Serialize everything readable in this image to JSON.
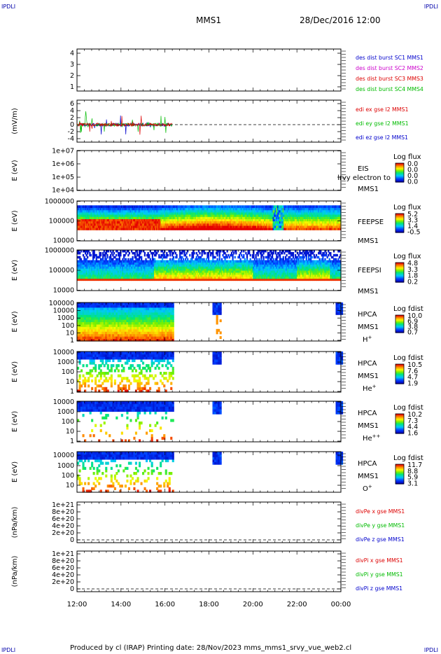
{
  "corners": {
    "tl": "IPDLI",
    "tr": "IPDLI",
    "bl": "IPDLI",
    "br": "IPDLI"
  },
  "header": {
    "mission": "MMS1",
    "datetime": "28/Dec/2016 12:00"
  },
  "footer": "Produced by cl (IRAP)   Printing date: 28/Nov/2023   mms_mms1_srvy_vue_web2.cl",
  "time_axis": {
    "labels": [
      "12:00",
      "14:00",
      "16:00",
      "18:00",
      "20:00",
      "22:00",
      "00:00"
    ]
  },
  "colors": {
    "red": "#dd0000",
    "green": "#00bb00",
    "blue": "#0000cc",
    "magenta": "#cc00cc"
  },
  "chart_data": [
    {
      "type": "line",
      "title": "",
      "ylabel": "",
      "yticks": [
        "1",
        "2",
        "3",
        "4"
      ],
      "ylim": [
        0.5,
        4.5
      ],
      "series": [
        {
          "name": "des dist burst SC1 MMS1",
          "color": "#0000cc",
          "values": []
        },
        {
          "name": "des dist burst SC2 MMS2",
          "color": "#cc00cc",
          "values": []
        },
        {
          "name": "des dist burst SC3 MMS3",
          "color": "#dd0000",
          "values": []
        },
        {
          "name": "des dist burst SC4 MMS4",
          "color": "#00bb00",
          "values": []
        }
      ]
    },
    {
      "type": "line",
      "ylabel": "(mV/m)",
      "yticks": [
        "6",
        "4",
        "2",
        "0",
        "-2",
        "-4"
      ],
      "ylim": [
        -5,
        7
      ],
      "series": [
        {
          "name": "edi ex gse l2 MMS1",
          "color": "#dd0000"
        },
        {
          "name": "edi ey gse l2 MMS1",
          "color": "#00bb00"
        },
        {
          "name": "edi ez gse l2 MMS1",
          "color": "#0000cc"
        }
      ],
      "data_extent": [
        "12:00",
        "16:20"
      ]
    },
    {
      "type": "heatmap",
      "ylabel": "E (eV)",
      "yticks": [
        "1e+07",
        "1e+06",
        "1e+05",
        "1e+04"
      ],
      "right_labels": [
        "EIS",
        "MMS1"
      ],
      "overlay_text": "lrvy electron to",
      "colorbar": {
        "title": "Log flux",
        "ticks": [
          "0.0",
          "0.0",
          "0.0",
          "0.0"
        ]
      }
    },
    {
      "type": "heatmap",
      "ylabel": "E (eV)",
      "yticks": [
        "1000000",
        "100000",
        "10000"
      ],
      "right_labels": [
        "FEEPSE",
        "MMS1"
      ],
      "colorbar": {
        "title": "Log flux",
        "ticks": [
          "5.2",
          "3.3",
          "1.4",
          "-0.5"
        ]
      }
    },
    {
      "type": "heatmap",
      "ylabel": "E (eV)",
      "yticks": [
        "1000000",
        "100000",
        "10000"
      ],
      "right_labels": [
        "FEEPSI",
        "MMS1"
      ],
      "colorbar": {
        "title": "Log flux",
        "ticks": [
          "4.8",
          "3.3",
          "1.8",
          "0.2"
        ]
      }
    },
    {
      "type": "heatmap",
      "ylabel": "E (eV)",
      "yticks": [
        "100000",
        "10000",
        "1000",
        "100",
        "10",
        "1"
      ],
      "right_labels": [
        "HPCA",
        "MMS1",
        "H+"
      ],
      "colorbar": {
        "title": "Log fdist",
        "ticks": [
          "10.0",
          "6.9",
          "3.8",
          "0.7"
        ]
      }
    },
    {
      "type": "heatmap",
      "ylabel": "E (eV)",
      "yticks": [
        "10000",
        "1000",
        "100",
        "10",
        "1"
      ],
      "right_labels": [
        "HPCA",
        "MMS1",
        "He+"
      ],
      "colorbar": {
        "title": "Log fdist",
        "ticks": [
          "10.5",
          "7.6",
          "4.7",
          "1.9"
        ]
      }
    },
    {
      "type": "heatmap",
      "ylabel": "E (eV)",
      "yticks": [
        "10000",
        "1000",
        "100",
        "10",
        "1"
      ],
      "right_labels": [
        "HPCA",
        "MMS1",
        "He++"
      ],
      "colorbar": {
        "title": "Log fdist",
        "ticks": [
          "10.2",
          "7.3",
          "4.4",
          "1.6"
        ]
      }
    },
    {
      "type": "heatmap",
      "ylabel": "E (eV)",
      "yticks": [
        "10000",
        "1000",
        "100",
        "10"
      ],
      "right_labels": [
        "HPCA",
        "MMS1",
        "O+"
      ],
      "colorbar": {
        "title": "Log fdist",
        "ticks": [
          "11.7",
          "8.8",
          "5.9",
          "3.1"
        ]
      }
    },
    {
      "type": "line",
      "ylabel": "(nPa/km)",
      "yticks": [
        "1e+21",
        "8e+20",
        "6e+20",
        "4e+20",
        "2e+20",
        "0"
      ],
      "series": [
        {
          "name": "divPe x gse MMS1",
          "color": "#dd0000"
        },
        {
          "name": "divPe y gse MMS1",
          "color": "#00bb00"
        },
        {
          "name": "divPe z gse MMS1",
          "color": "#0000cc"
        }
      ]
    },
    {
      "type": "line",
      "ylabel": "(nPa/km)",
      "yticks": [
        "1e+21",
        "8e+20",
        "6e+20",
        "4e+20",
        "2e+20",
        "0"
      ],
      "series": [
        {
          "name": "divPi x gse MMS1",
          "color": "#dd0000"
        },
        {
          "name": "divPi y gse MMS1",
          "color": "#00bb00"
        },
        {
          "name": "divPi z gse MMS1",
          "color": "#0000cc"
        }
      ]
    }
  ]
}
